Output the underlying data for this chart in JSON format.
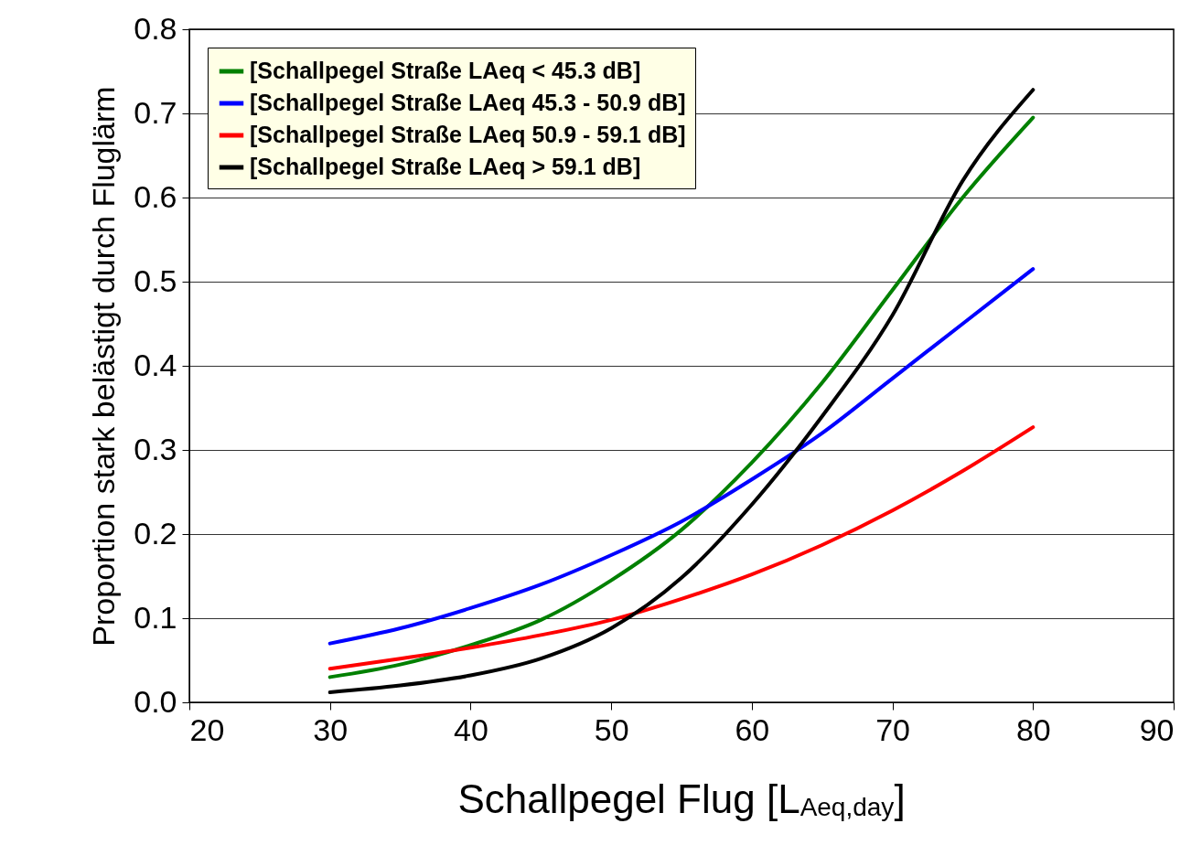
{
  "chart_data": {
    "type": "line",
    "xlabel": "Schallpegel Flug [L$_{Aeq,day}$]",
    "ylabel": "Proportion stark belästigt durch Fluglärm",
    "x": [
      30,
      35,
      40,
      45,
      50,
      55,
      60,
      65,
      70,
      75,
      80
    ],
    "series": [
      {
        "name": "[Schallpegel Straße LAeq < 45.3 dB]",
        "color": "#008000",
        "values": [
          0.03,
          0.045,
          0.068,
          0.098,
          0.145,
          0.205,
          0.285,
          0.38,
          0.49,
          0.6,
          0.695
        ]
      },
      {
        "name": "[Schallpegel Straße LAeq 45.3 - 50.9 dB]",
        "color": "#0000ff",
        "values": [
          0.07,
          0.088,
          0.112,
          0.14,
          0.175,
          0.215,
          0.265,
          0.32,
          0.385,
          0.45,
          0.515
        ]
      },
      {
        "name": "[Schallpegel Straße LAeq 50.9 - 59.1 dB]",
        "color": "#ff0000",
        "values": [
          0.04,
          0.052,
          0.065,
          0.08,
          0.098,
          0.123,
          0.152,
          0.187,
          0.228,
          0.275,
          0.327
        ]
      },
      {
        "name": "[Schallpegel Straße LAeq > 59.1 dB]",
        "color": "#000000",
        "values": [
          0.012,
          0.02,
          0.032,
          0.052,
          0.088,
          0.148,
          0.235,
          0.34,
          0.46,
          0.62,
          0.728
        ]
      }
    ],
    "xlim": [
      20,
      90
    ],
    "xticks": [
      20,
      30,
      40,
      50,
      60,
      70,
      80,
      90
    ],
    "ylim": [
      0,
      0.8
    ],
    "yticks": [
      {
        "value": 0,
        "label": "0.0"
      },
      0.1,
      0.2,
      0.3,
      0.4,
      0.5,
      0.6,
      0.7,
      0.8
    ],
    "grid": "y",
    "legend": "top left",
    "line_style": "solid"
  }
}
